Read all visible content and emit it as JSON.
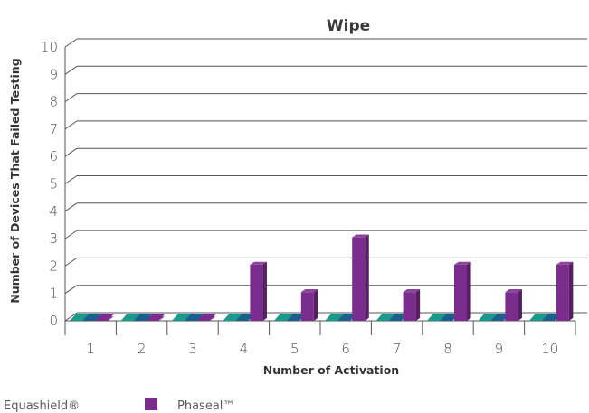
{
  "chart_data": {
    "type": "bar",
    "title": "Wipe",
    "xlabel": "Number of Activation",
    "ylabel": "Number of Devices That Failed Testing",
    "categories": [
      "1",
      "2",
      "3",
      "4",
      "5",
      "6",
      "7",
      "8",
      "9",
      "10"
    ],
    "ylim": [
      0,
      10
    ],
    "yticks": [
      0,
      1,
      2,
      3,
      4,
      5,
      6,
      7,
      8,
      9,
      10
    ],
    "grid": true,
    "legend_position": "bottom",
    "series": [
      {
        "name": "Equashield®",
        "color": "#1a9a8a",
        "values": [
          0,
          0,
          0,
          0,
          0,
          0,
          0,
          0,
          0,
          0
        ]
      },
      {
        "name": "",
        "color": "#1b5f8c",
        "values": [
          0,
          0,
          0,
          0,
          0,
          0,
          0,
          0,
          0,
          0
        ]
      },
      {
        "name": "Phaseal™",
        "color": "#7b2d8e",
        "values": [
          0,
          0,
          0,
          2,
          1,
          3,
          1,
          2,
          1,
          2
        ]
      }
    ]
  }
}
